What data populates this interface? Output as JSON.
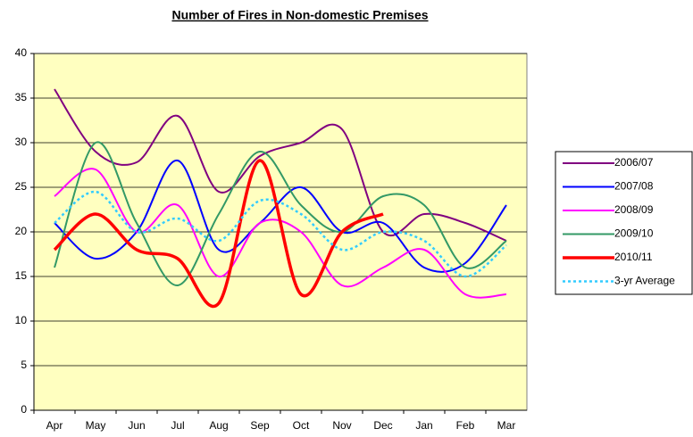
{
  "chart_data": {
    "type": "line",
    "title": "Number of Fires in Non-domestic Premises",
    "categories": [
      "Apr",
      "May",
      "Jun",
      "Jul",
      "Aug",
      "Sep",
      "Oct",
      "Nov",
      "Dec",
      "Jan",
      "Feb",
      "Mar"
    ],
    "ylim": [
      0,
      40
    ],
    "yticks": [
      0,
      5,
      10,
      15,
      20,
      25,
      30,
      35,
      40
    ],
    "grid": true,
    "smooth": true,
    "legend": "right",
    "series": [
      {
        "name": "2006/07",
        "color": "#800080",
        "width": 2,
        "dash": false,
        "values": [
          36,
          29,
          27.8,
          33,
          24.5,
          28.5,
          30,
          31.5,
          20,
          22,
          21,
          19
        ]
      },
      {
        "name": "2007/08",
        "color": "#0000ff",
        "width": 2,
        "dash": false,
        "values": [
          21,
          17,
          20,
          28,
          18,
          21,
          25,
          20,
          21,
          16,
          16.5,
          23
        ]
      },
      {
        "name": "2008/09",
        "color": "#ff00ff",
        "width": 2,
        "dash": false,
        "values": [
          24,
          27,
          20,
          23,
          15,
          21,
          20,
          14,
          16,
          18,
          13,
          13
        ]
      },
      {
        "name": "2009/10",
        "color": "#339966",
        "width": 2,
        "dash": false,
        "values": [
          16,
          30,
          21,
          14,
          22,
          29,
          23,
          20,
          24,
          23,
          16,
          19
        ]
      },
      {
        "name": "2010/11",
        "color": "#ff0000",
        "width": 3.5,
        "dash": false,
        "values": [
          18,
          22,
          18,
          17,
          12,
          28,
          13,
          20,
          22,
          null,
          null,
          null
        ]
      },
      {
        "name": "3-yr Average",
        "color": "#33ccff",
        "width": 2.5,
        "dash": true,
        "values": [
          21,
          24.5,
          20,
          21.5,
          19,
          23.5,
          22,
          18,
          20,
          19,
          15,
          18.5
        ]
      }
    ]
  }
}
